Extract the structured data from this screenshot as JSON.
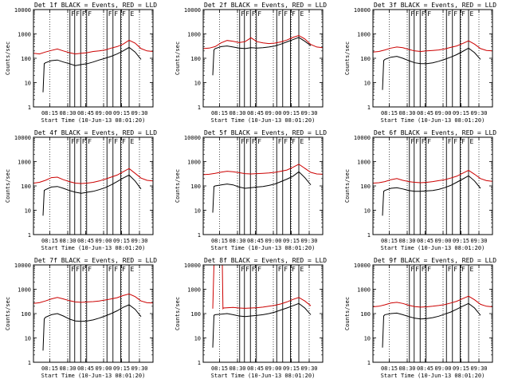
{
  "chart_data": {
    "type": "line",
    "layout": "3x3 grid",
    "y_scale": "log",
    "ylim": [
      1,
      10000
    ],
    "yticks": [
      1,
      10,
      100,
      1000,
      10000
    ],
    "ytick_labels": [
      "1",
      "10",
      "100",
      "1000",
      "10000"
    ],
    "ylabel": "Counts/sec",
    "xlabel": "Start Time (10-Jun-13 08:01:20)",
    "xlim_minutes": [
      0,
      100
    ],
    "xticks_minutes": [
      13.67,
      28.67,
      43.67,
      58.67,
      73.67,
      88.67
    ],
    "xtick_labels": [
      "08:15",
      "08:30",
      "08:45",
      "09:00",
      "09:15",
      "09:30"
    ],
    "legend_text": "BLACK = Events, RED = LLD",
    "series_colors": {
      "events": "#000000",
      "lld": "#cc0000"
    },
    "dotted_lines_minutes": [
      13.67,
      28.67,
      43.67,
      58.67,
      73.67,
      88.67
    ],
    "interval_markers": [
      {
        "minute": 30.5,
        "label": "F"
      },
      {
        "minute": 34.5,
        "label": "F"
      },
      {
        "minute": 39.5,
        "label": "F"
      },
      {
        "minute": 44.5,
        "label": "F"
      },
      {
        "minute": 61.5,
        "label": "F"
      },
      {
        "minute": 66.5,
        "label": "F"
      },
      {
        "minute": 73.0,
        "label": "F"
      },
      {
        "minute": 80.0,
        "label": "E"
      }
    ],
    "panels": [
      {
        "title": "Det 1f BLACK = Events, RED = LLD",
        "series": [
          {
            "name": "LLD",
            "color": "red",
            "x": [
              0,
              5,
              10,
              15,
              20,
              25,
              30,
              35,
              40,
              45,
              50,
              55,
              60,
              65,
              70,
              75,
              80,
              85,
              90,
              95,
              100
            ],
            "y": [
              160,
              150,
              180,
              210,
              240,
              200,
              170,
              150,
              160,
              170,
              190,
              200,
              220,
              260,
              300,
              380,
              550,
              420,
              250,
              200,
              190
            ]
          },
          {
            "name": "Events",
            "color": "black",
            "x": [
              8,
              9,
              10,
              15,
              20,
              25,
              30,
              35,
              40,
              45,
              50,
              55,
              60,
              65,
              70,
              75,
              80,
              85,
              90
            ],
            "y": [
              4,
              60,
              65,
              80,
              85,
              70,
              60,
              50,
              55,
              60,
              70,
              85,
              100,
              120,
              150,
              200,
              280,
              180,
              90
            ]
          }
        ]
      },
      {
        "title": "Det 2f BLACK = Events, RED = LLD",
        "series": [
          {
            "name": "LLD",
            "color": "red",
            "x": [
              0,
              5,
              10,
              15,
              20,
              25,
              30,
              35,
              40,
              45,
              50,
              55,
              60,
              65,
              70,
              75,
              80,
              85,
              90,
              95,
              100
            ],
            "y": [
              250,
              260,
              300,
              430,
              540,
              500,
              440,
              480,
              690,
              480,
              430,
              400,
              420,
              470,
              560,
              720,
              860,
              620,
              370,
              290,
              270
            ]
          },
          {
            "name": "Events",
            "color": "black",
            "x": [
              8,
              9,
              10,
              15,
              20,
              25,
              30,
              35,
              40,
              45,
              50,
              55,
              60,
              65,
              70,
              75,
              80,
              85,
              90
            ],
            "y": [
              20,
              220,
              250,
              300,
              320,
              290,
              260,
              250,
              270,
              260,
              270,
              290,
              320,
              380,
              470,
              580,
              720,
              500,
              330
            ]
          }
        ]
      },
      {
        "title": "Det 3f BLACK = Events, RED = LLD",
        "series": [
          {
            "name": "LLD",
            "color": "red",
            "x": [
              0,
              5,
              10,
              15,
              20,
              25,
              30,
              35,
              40,
              45,
              50,
              55,
              60,
              65,
              70,
              75,
              80,
              85,
              90,
              95,
              100
            ],
            "y": [
              180,
              190,
              220,
              260,
              290,
              270,
              230,
              200,
              190,
              200,
              210,
              220,
              240,
              280,
              320,
              400,
              520,
              380,
              250,
              210,
              200
            ]
          },
          {
            "name": "Events",
            "color": "black",
            "x": [
              8,
              9,
              10,
              15,
              20,
              25,
              30,
              35,
              40,
              45,
              50,
              55,
              60,
              65,
              70,
              75,
              80,
              85,
              90
            ],
            "y": [
              5,
              80,
              90,
              110,
              120,
              100,
              80,
              65,
              60,
              60,
              65,
              75,
              90,
              110,
              140,
              190,
              260,
              170,
              90
            ]
          }
        ]
      },
      {
        "title": "Det 4f BLACK = Events, RED = LLD",
        "series": [
          {
            "name": "LLD",
            "color": "red",
            "x": [
              0,
              5,
              10,
              15,
              20,
              25,
              30,
              35,
              40,
              45,
              50,
              55,
              60,
              65,
              70,
              75,
              80,
              85,
              90,
              95,
              100
            ],
            "y": [
              130,
              140,
              170,
              220,
              230,
              180,
              150,
              130,
              125,
              130,
              140,
              160,
              190,
              230,
              280,
              380,
              520,
              330,
              210,
              170,
              160
            ]
          },
          {
            "name": "Events",
            "color": "black",
            "x": [
              8,
              9,
              10,
              15,
              20,
              25,
              30,
              35,
              40,
              45,
              50,
              55,
              60,
              65,
              70,
              75,
              80,
              85,
              90
            ],
            "y": [
              6,
              65,
              70,
              90,
              95,
              80,
              65,
              55,
              50,
              55,
              60,
              70,
              85,
              110,
              150,
              210,
              280,
              160,
              75
            ]
          }
        ]
      },
      {
        "title": "Det 5f BLACK = Events, RED = LLD",
        "series": [
          {
            "name": "LLD",
            "color": "red",
            "x": [
              0,
              5,
              10,
              15,
              20,
              25,
              30,
              35,
              40,
              45,
              50,
              55,
              60,
              65,
              70,
              75,
              80,
              85,
              90,
              95,
              100
            ],
            "y": [
              290,
              300,
              330,
              370,
              400,
              380,
              350,
              320,
              310,
              320,
              330,
              340,
              360,
              400,
              450,
              580,
              780,
              530,
              360,
              310,
              300
            ]
          },
          {
            "name": "Events",
            "color": "black",
            "x": [
              8,
              9,
              10,
              15,
              20,
              25,
              30,
              35,
              40,
              45,
              50,
              55,
              60,
              65,
              70,
              75,
              80,
              85,
              90
            ],
            "y": [
              8,
              95,
              100,
              110,
              120,
              110,
              90,
              80,
              85,
              90,
              95,
              105,
              120,
              150,
              190,
              250,
              380,
              220,
              110
            ]
          }
        ]
      },
      {
        "title": "Det 6f BLACK = Events, RED = LLD",
        "series": [
          {
            "name": "LLD",
            "color": "red",
            "x": [
              0,
              5,
              10,
              15,
              20,
              25,
              30,
              35,
              40,
              45,
              50,
              55,
              60,
              65,
              70,
              75,
              80,
              85,
              90,
              95,
              100
            ],
            "y": [
              130,
              135,
              150,
              180,
              200,
              170,
              150,
              140,
              135,
              140,
              150,
              165,
              180,
              210,
              250,
              330,
              440,
              300,
              200,
              165,
              155
            ]
          },
          {
            "name": "Events",
            "color": "black",
            "x": [
              8,
              9,
              10,
              15,
              20,
              25,
              30,
              35,
              40,
              45,
              50,
              55,
              60,
              65,
              70,
              75,
              80,
              85,
              90
            ],
            "y": [
              6,
              60,
              65,
              80,
              85,
              75,
              65,
              60,
              60,
              62,
              65,
              72,
              85,
              105,
              140,
              190,
              260,
              160,
              80
            ]
          }
        ]
      },
      {
        "title": "Det 7f BLACK = Events, RED = LLD",
        "series": [
          {
            "name": "LLD",
            "color": "red",
            "x": [
              0,
              5,
              10,
              15,
              20,
              25,
              30,
              35,
              40,
              45,
              50,
              55,
              60,
              65,
              70,
              75,
              80,
              85,
              90,
              95,
              100
            ],
            "y": [
              260,
              280,
              330,
              400,
              460,
              400,
              340,
              300,
              290,
              300,
              310,
              330,
              360,
              400,
              450,
              550,
              640,
              500,
              330,
              280,
              270
            ]
          },
          {
            "name": "Events",
            "color": "black",
            "x": [
              8,
              9,
              10,
              15,
              20,
              25,
              30,
              35,
              40,
              45,
              50,
              55,
              60,
              65,
              70,
              75,
              80,
              85,
              90
            ],
            "y": [
              3,
              60,
              70,
              90,
              100,
              80,
              60,
              50,
              48,
              50,
              55,
              65,
              80,
              100,
              130,
              180,
              230,
              150,
              75
            ]
          }
        ]
      },
      {
        "title": "Det 8f BLACK = Events, RED = LLD",
        "series": [
          {
            "name": "LLD",
            "color": "red",
            "x": [
              8,
              9,
              16,
              16.5,
              17,
              25,
              30,
              35,
              40,
              45,
              50,
              55,
              60,
              65,
              70,
              75,
              80,
              85,
              90
            ],
            "y": [
              160,
              10000,
              10000,
              160,
              170,
              180,
              170,
              165,
              170,
              175,
              185,
              200,
              220,
              250,
              300,
              380,
              460,
              330,
              210
            ]
          },
          {
            "name": "Events",
            "color": "black",
            "x": [
              8,
              9,
              10,
              15,
              20,
              25,
              30,
              35,
              40,
              45,
              50,
              55,
              60,
              65,
              70,
              75,
              80,
              85,
              90
            ],
            "y": [
              4,
              85,
              90,
              95,
              100,
              90,
              80,
              75,
              80,
              85,
              90,
              100,
              115,
              140,
              170,
              210,
              260,
              170,
              90
            ]
          }
        ]
      },
      {
        "title": "Det 9f BLACK = Events, RED = LLD",
        "series": [
          {
            "name": "LLD",
            "color": "red",
            "x": [
              0,
              5,
              10,
              15,
              20,
              25,
              30,
              35,
              40,
              45,
              50,
              55,
              60,
              65,
              70,
              75,
              80,
              85,
              90,
              95,
              100
            ],
            "y": [
              190,
              200,
              230,
              270,
              290,
              260,
              220,
              195,
              185,
              190,
              200,
              215,
              235,
              270,
              320,
              410,
              520,
              370,
              240,
              200,
              190
            ]
          },
          {
            "name": "Events",
            "color": "black",
            "x": [
              8,
              9,
              10,
              15,
              20,
              25,
              30,
              35,
              40,
              45,
              50,
              55,
              60,
              65,
              70,
              75,
              80,
              85,
              90
            ],
            "y": [
              4,
              80,
              90,
              100,
              105,
              90,
              75,
              65,
              60,
              62,
              68,
              78,
              95,
              115,
              150,
              200,
              260,
              170,
              85
            ]
          }
        ]
      }
    ]
  }
}
